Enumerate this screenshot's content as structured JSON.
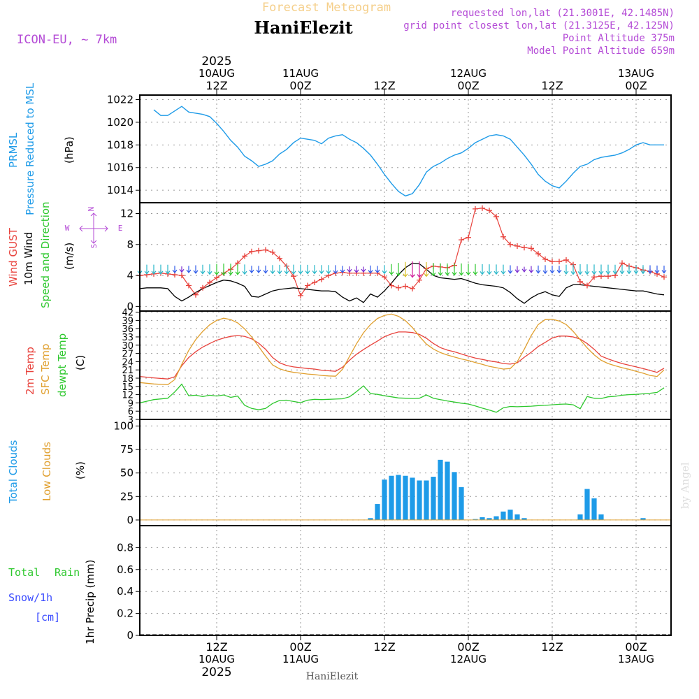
{
  "header": {
    "title_faded": "Forecast Meteogram",
    "station_name": "HaniElezit",
    "model": "ICON-EU, ~ 7km",
    "requested": "requested lon,lat (21.3001E, 42.1485N)",
    "gridpoint": "grid point closest lon,lat (21.3125E, 42.125N)",
    "point_altitude": "Point Altitude 375m",
    "model_altitude": "Model Point Altitude 659m",
    "footer_name": "HaniElezit",
    "watermark": "by Angel"
  },
  "time_axis": {
    "year": "2025",
    "ticks": [
      {
        "hour": 0,
        "top": "12Z",
        "date": "10AUG",
        "year": "2025"
      },
      {
        "hour": 12,
        "top": "00Z",
        "date": "11AUG",
        "year": ""
      },
      {
        "hour": 24,
        "top": "12Z",
        "date": "",
        "year": ""
      },
      {
        "hour": 36,
        "top": "00Z",
        "date": "12AUG",
        "year": ""
      },
      {
        "hour": 48,
        "top": "12Z",
        "date": "",
        "year": ""
      },
      {
        "hour": 60,
        "top": "00Z",
        "date": "13AUG",
        "year": ""
      }
    ],
    "x_start_hour": -11,
    "x_end_hour": 65
  },
  "colors": {
    "pressure": "#1e9be8",
    "gust": "#e8423c",
    "wind": "#000000",
    "t2m": "#e8423c",
    "sfc": "#e0a030",
    "dewpt": "#2ec82e",
    "clouds": "#1e9be8",
    "lowclouds": "#e0a030",
    "rain": "#2ec82e",
    "snow": "#3a4bff",
    "purple": "#b44bd6"
  },
  "panels": {
    "pressure": {
      "labels": [
        "PRMSL",
        "Pressure Reduced to MSL"
      ],
      "unit": "(hPa)"
    },
    "wind": {
      "labels": [
        "Wind GUST",
        "10m Wind",
        "Speed and Direction"
      ],
      "unit": "(m/s)",
      "compass": {
        "n": "N",
        "e": "E",
        "s": "S",
        "w": "W"
      }
    },
    "temp": {
      "labels": [
        "2m Temp",
        "SFC Temp",
        "dewpt Temp"
      ],
      "unit": "(C)"
    },
    "clouds": {
      "labels": [
        "Total Clouds",
        "Low Clouds"
      ],
      "unit": "(%)"
    },
    "precip": {
      "labels": [
        "Total",
        "Rain",
        "Snow/1h",
        "[cm]"
      ],
      "axis": "1hr Precip (mm)"
    }
  },
  "chart_data": [
    {
      "type": "line",
      "title": "PRMSL Pressure Reduced to MSL",
      "ylabel": "(hPa)",
      "ylim": [
        1012.9,
        1022.4
      ],
      "yticks": [
        1014,
        1016,
        1018,
        1020,
        1022
      ],
      "x": [
        -9,
        -8,
        -7,
        -6,
        -5,
        -4,
        -3,
        -2,
        -1,
        0,
        1,
        2,
        3,
        4,
        5,
        6,
        7,
        8,
        9,
        10,
        11,
        12,
        13,
        14,
        15,
        16,
        17,
        18,
        19,
        20,
        21,
        22,
        23,
        24,
        25,
        26,
        27,
        28,
        29,
        30,
        31,
        32,
        33,
        34,
        35,
        36,
        37,
        38,
        39,
        40,
        41,
        42,
        43,
        44,
        45,
        46,
        47,
        48,
        49,
        50,
        51,
        52,
        53,
        54,
        55,
        56,
        57,
        58,
        59,
        60,
        61,
        62,
        63,
        64
      ],
      "series": [
        {
          "name": "PRMSL",
          "values": [
            1021.1,
            1020.6,
            1020.6,
            1021.0,
            1021.4,
            1020.9,
            1020.8,
            1020.7,
            1020.5,
            1019.9,
            1019.2,
            1018.4,
            1017.8,
            1017.0,
            1016.6,
            1016.1,
            1016.3,
            1016.6,
            1017.2,
            1017.6,
            1018.2,
            1018.6,
            1018.5,
            1018.4,
            1018.1,
            1018.6,
            1018.8,
            1018.9,
            1018.5,
            1018.2,
            1017.7,
            1017.1,
            1016.3,
            1015.4,
            1014.6,
            1013.9,
            1013.5,
            1013.7,
            1014.5,
            1015.6,
            1016.1,
            1016.4,
            1016.8,
            1017.1,
            1017.3,
            1017.7,
            1018.2,
            1018.5,
            1018.8,
            1018.9,
            1018.8,
            1018.5,
            1017.8,
            1017.1,
            1016.3,
            1015.4,
            1014.8,
            1014.4,
            1014.2,
            1014.8,
            1015.5,
            1016.1,
            1016.3,
            1016.7,
            1016.9,
            1017.0,
            1017.1,
            1017.3,
            1017.6,
            1018.0,
            1018.2,
            1018.0,
            1018.0,
            1018.0
          ]
        }
      ]
    },
    {
      "type": "line",
      "title": "Wind GUST / 10m Wind Speed and Direction",
      "ylabel": "(m/s)",
      "ylim": [
        -0.6,
        13.4
      ],
      "yticks": [
        0,
        4,
        8,
        12
      ],
      "x": [
        -11,
        -10,
        -9,
        -8,
        -7,
        -6,
        -5,
        -4,
        -3,
        -2,
        -1,
        0,
        1,
        2,
        3,
        4,
        5,
        6,
        7,
        8,
        9,
        10,
        11,
        12,
        13,
        14,
        15,
        16,
        17,
        18,
        19,
        20,
        21,
        22,
        23,
        24,
        25,
        26,
        27,
        28,
        29,
        30,
        31,
        32,
        33,
        34,
        35,
        36,
        37,
        38,
        39,
        40,
        41,
        42,
        43,
        44,
        45,
        46,
        47,
        48,
        49,
        50,
        51,
        52,
        53,
        54,
        55,
        56,
        57,
        58,
        59,
        60,
        61,
        62,
        63,
        64
      ],
      "series": [
        {
          "name": "Wind GUST",
          "values": [
            4.0,
            4.1,
            4.2,
            4.3,
            4.2,
            4.1,
            4.0,
            2.7,
            1.5,
            2.4,
            3.1,
            3.7,
            4.3,
            4.8,
            5.6,
            6.5,
            7.1,
            7.2,
            7.3,
            7.0,
            6.2,
            5.2,
            3.9,
            1.4,
            2.7,
            3.1,
            3.5,
            4.0,
            4.3,
            4.4,
            4.3,
            4.3,
            4.3,
            4.3,
            4.3,
            3.8,
            2.7,
            2.4,
            2.6,
            2.3,
            3.4,
            4.9,
            5.2,
            5.1,
            5.0,
            5.3,
            8.6,
            8.9,
            12.6,
            12.7,
            12.4,
            11.6,
            9.0,
            8.0,
            7.8,
            7.6,
            7.5,
            6.8,
            6.1,
            5.8,
            5.8,
            6.0,
            5.4,
            3.2,
            2.7,
            3.8,
            3.9,
            3.9,
            4.0,
            5.6,
            5.2,
            5.0,
            4.7,
            4.5,
            4.2,
            3.8
          ]
        },
        {
          "name": "10m Wind",
          "values": [
            2.3,
            2.4,
            2.4,
            2.4,
            2.3,
            1.3,
            0.7,
            1.2,
            1.8,
            2.3,
            2.7,
            3.1,
            3.4,
            3.3,
            3.0,
            2.6,
            1.3,
            1.2,
            1.6,
            2.0,
            2.2,
            2.3,
            2.4,
            2.3,
            2.2,
            2.1,
            2.0,
            2.0,
            1.9,
            1.2,
            0.7,
            1.1,
            0.5,
            1.6,
            1.2,
            2.0,
            3.0,
            4.1,
            5.0,
            5.6,
            5.5,
            4.8,
            4.0,
            3.7,
            3.6,
            3.5,
            3.6,
            3.3,
            3.0,
            2.8,
            2.7,
            2.6,
            2.4,
            1.8,
            1.0,
            0.4,
            1.1,
            1.6,
            1.9,
            1.5,
            1.3,
            2.4,
            2.8,
            2.8,
            2.7,
            2.6,
            2.5,
            2.4,
            2.3,
            2.2,
            2.1,
            2.0,
            2.0,
            1.8,
            1.6,
            1.5
          ]
        }
      ]
    },
    {
      "type": "line",
      "title": "2m Temp / SFC Temp / dewpt Temp",
      "ylabel": "(C)",
      "ylim": [
        3,
        42.4
      ],
      "yticks": [
        3,
        6,
        9,
        12,
        15,
        18,
        21,
        24,
        27,
        30,
        33,
        36,
        39,
        42
      ],
      "x": [
        -11,
        -9,
        -7,
        -6,
        -5,
        -4,
        -3,
        -2,
        -1,
        0,
        1,
        2,
        3,
        4,
        5,
        6,
        7,
        8,
        9,
        10,
        11,
        12,
        13,
        14,
        15,
        16,
        17,
        18,
        19,
        20,
        21,
        22,
        23,
        24,
        25,
        26,
        27,
        28,
        29,
        30,
        31,
        32,
        33,
        34,
        35,
        36,
        37,
        38,
        39,
        40,
        41,
        42,
        43,
        44,
        45,
        46,
        47,
        48,
        49,
        50,
        51,
        52,
        53,
        54,
        55,
        56,
        57,
        58,
        59,
        60,
        61,
        62,
        63,
        64
      ],
      "series": [
        {
          "name": "2m Temp",
          "values": [
            18.6,
            18.1,
            17.7,
            18.5,
            22.5,
            25.5,
            27.6,
            29.3,
            30.6,
            31.8,
            32.6,
            33.2,
            33.5,
            33.2,
            32.3,
            30.7,
            28.5,
            25.5,
            23.6,
            22.6,
            22.1,
            21.8,
            21.5,
            21.3,
            20.9,
            20.7,
            20.5,
            22.0,
            24.5,
            26.7,
            28.4,
            30.0,
            31.5,
            33.1,
            34.1,
            34.8,
            34.8,
            34.6,
            33.9,
            32.5,
            30.6,
            29.1,
            28.2,
            27.6,
            26.8,
            26.0,
            25.3,
            24.8,
            24.3,
            23.9,
            23.3,
            23.1,
            23.6,
            25.6,
            27.4,
            29.5,
            31.0,
            32.6,
            33.3,
            33.3,
            33.0,
            32.2,
            30.6,
            28.5,
            26.0,
            25.0,
            24.1,
            23.3,
            22.7,
            22.1,
            21.5,
            20.8,
            20.1,
            21.6
          ]
        },
        {
          "name": "SFC Temp",
          "values": [
            16.4,
            15.9,
            15.6,
            17.5,
            23.0,
            28.1,
            32.0,
            35.0,
            37.4,
            39.0,
            39.8,
            39.3,
            38.1,
            35.9,
            33.0,
            29.5,
            26.0,
            22.8,
            21.4,
            20.6,
            20.1,
            19.8,
            19.5,
            19.3,
            19.0,
            18.8,
            18.7,
            21.2,
            25.9,
            30.5,
            34.5,
            37.5,
            39.7,
            40.8,
            41.3,
            40.5,
            38.9,
            36.4,
            33.2,
            30.4,
            28.6,
            27.3,
            26.4,
            25.7,
            25.0,
            24.4,
            23.7,
            23.0,
            22.3,
            21.8,
            21.3,
            21.5,
            24.0,
            28.5,
            33.5,
            37.5,
            39.3,
            39.4,
            38.8,
            37.5,
            35.0,
            32.0,
            29.0,
            26.5,
            24.5,
            23.3,
            22.5,
            21.8,
            21.2,
            20.5,
            19.8,
            19.0,
            18.6,
            21.0
          ]
        },
        {
          "name": "dewpt Temp",
          "values": [
            9.0,
            10.2,
            10.7,
            13.0,
            15.8,
            11.6,
            11.8,
            11.3,
            11.8,
            11.5,
            11.9,
            11.0,
            11.5,
            8.1,
            7.0,
            6.5,
            7.0,
            8.8,
            9.9,
            10.0,
            9.5,
            9.1,
            10.0,
            10.3,
            10.2,
            10.3,
            10.4,
            10.5,
            11.2,
            13.1,
            15.2,
            12.4,
            12.1,
            11.6,
            11.2,
            10.8,
            10.7,
            10.6,
            10.7,
            11.9,
            10.7,
            10.2,
            9.7,
            9.3,
            8.9,
            8.6,
            7.9,
            7.1,
            6.4,
            5.6,
            7.2,
            7.7,
            7.6,
            7.7,
            7.8,
            8.0,
            8.1,
            8.3,
            8.5,
            8.6,
            8.3,
            6.9,
            11.3,
            10.7,
            10.6,
            11.2,
            11.4,
            11.8,
            12.0,
            12.1,
            12.3,
            12.5,
            12.8,
            14.5
          ]
        }
      ]
    },
    {
      "type": "bar",
      "title": "Total Clouds / Low Clouds",
      "ylabel": "(%)",
      "ylim": [
        -6,
        107
      ],
      "yticks": [
        0,
        25,
        50,
        75,
        100
      ],
      "x": [
        22,
        23,
        24,
        25,
        26,
        27,
        28,
        29,
        30,
        31,
        32,
        33,
        34,
        35,
        36,
        37,
        38,
        39,
        40,
        41,
        42,
        43,
        44,
        45,
        46,
        47,
        48,
        49,
        50,
        51,
        52,
        53,
        54,
        55,
        56,
        57,
        58,
        59,
        60,
        61,
        62
      ],
      "series": [
        {
          "name": "Total Clouds",
          "values": [
            2,
            17,
            43,
            47,
            48,
            47,
            45,
            42,
            42,
            46,
            64,
            62,
            51,
            35,
            0,
            1,
            3,
            2,
            4,
            9,
            11,
            6,
            2,
            0,
            0,
            0,
            0,
            0,
            0,
            0,
            6,
            33,
            23,
            6,
            0,
            0,
            0,
            0,
            0,
            2,
            0
          ]
        }
      ]
    },
    {
      "type": "bar",
      "title": "Total Rain Snow/1h [cm]",
      "ylabel": "1hr Precip (mm)",
      "ylim": [
        0,
        1.0
      ],
      "yticks": [
        0,
        0.2,
        0.4,
        0.6,
        0.8
      ],
      "series": []
    }
  ]
}
